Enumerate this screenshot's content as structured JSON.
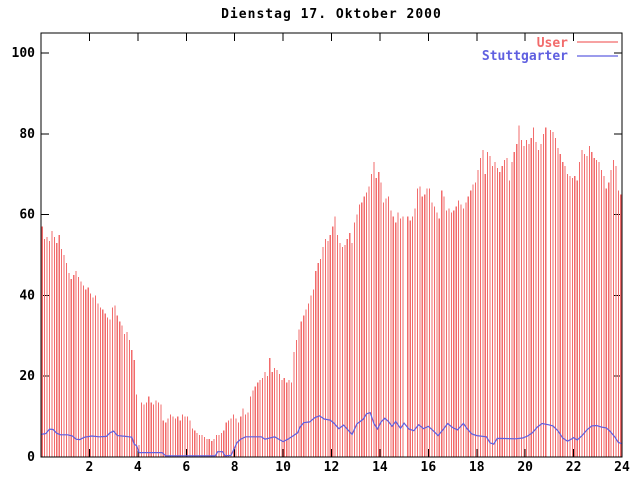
{
  "title": "Dienstag 17. Oktober 2000",
  "legend": {
    "position": "top-right-inside",
    "items": [
      {
        "label": "User",
        "color": "#f26b6b",
        "sample": "line"
      },
      {
        "label": "Stuttgarter",
        "color": "#5f5fe0",
        "sample": "line"
      }
    ]
  },
  "axes": {
    "x": {
      "min": 0,
      "max": 24,
      "ticks": [
        2,
        4,
        6,
        8,
        10,
        12,
        14,
        16,
        18,
        20,
        22,
        24
      ],
      "tick_labels": [
        "2",
        "4",
        "6",
        "8",
        "10",
        "12",
        "14",
        "16",
        "18",
        "20",
        "22",
        "24"
      ],
      "mirrored_top": true
    },
    "y": {
      "min": 0,
      "max": 100,
      "ticks": [
        0,
        20,
        40,
        60,
        80,
        100
      ],
      "tick_labels": [
        "0",
        "20",
        "40",
        "60",
        "80",
        "100"
      ],
      "mirrored_right": true
    }
  },
  "colors": {
    "background": "#ffffff",
    "border": "#000000",
    "text": "#000000",
    "user_bars": "#f26b6b",
    "stuttgarter_line": "#5f5fe0"
  },
  "chart_data": {
    "type": "bar",
    "title": "Dienstag 17. Oktober 2000",
    "xlabel": "",
    "ylabel": "",
    "xlim": [
      0,
      24
    ],
    "ylim": [
      0,
      100
    ],
    "grid": false,
    "note_gaps_hours": [
      15.05,
      20.95
    ],
    "series": [
      {
        "name": "User",
        "type": "impulses",
        "color": "#f26b6b",
        "x_start": 0.05,
        "x_step": 0.1,
        "values": [
          57,
          54,
          54.5,
          53.5,
          56,
          54.5,
          53,
          55,
          51.5,
          50,
          48,
          45.5,
          44,
          45,
          46,
          44.5,
          43.5,
          42.5,
          41.5,
          42,
          40.5,
          39.5,
          40,
          38,
          37,
          36.5,
          35.5,
          34.5,
          34,
          37,
          37.5,
          35,
          33.5,
          32.5,
          30.5,
          31,
          29,
          26.5,
          24,
          15.5,
          3,
          13.5,
          13,
          13.5,
          15,
          13.5,
          13,
          14,
          13.5,
          13,
          9,
          8.5,
          9.5,
          10.5,
          10,
          9.5,
          10,
          9,
          10.5,
          10,
          10,
          9,
          7,
          6.5,
          6,
          5.5,
          5.5,
          5,
          4.5,
          4.5,
          4,
          4.5,
          5.5,
          5.5,
          6,
          6.5,
          8.5,
          9,
          9.5,
          10.5,
          9.5,
          8.5,
          10,
          12,
          10.5,
          11,
          15,
          16.5,
          17.5,
          18.5,
          19,
          19.5,
          21,
          20,
          24.5,
          21,
          22,
          21.5,
          20.5,
          19,
          19.5,
          18.5,
          19,
          18.5,
          26,
          29,
          31.5,
          33.5,
          35,
          36.5,
          38,
          40,
          41.5,
          46,
          48,
          49,
          52,
          54,
          53.5,
          55,
          57,
          59.5,
          55,
          53,
          52,
          52.5,
          54,
          55.5,
          53,
          58,
          60,
          62.5,
          63,
          64.5,
          65.5,
          67,
          70,
          73,
          69,
          70.5,
          68,
          63,
          64,
          64.5,
          61,
          59.5,
          58,
          60.5,
          59,
          59.5,
          null,
          59.5,
          58.5,
          59.5,
          61.5,
          66.5,
          67,
          64.5,
          65,
          66.5,
          66.5,
          63,
          62,
          60.5,
          59,
          66,
          64.5,
          61,
          61.5,
          60.5,
          61,
          62,
          63.5,
          62.5,
          61.5,
          63,
          64.5,
          66,
          67.5,
          68,
          71,
          74,
          76,
          70,
          75.5,
          74.5,
          72,
          73,
          71.5,
          70.5,
          72,
          73.5,
          74,
          68.5,
          73,
          75.5,
          77.5,
          82,
          78.5,
          77,
          78.5,
          77.5,
          79,
          81.5,
          78,
          76,
          77.5,
          80,
          81.5,
          null,
          81,
          80.5,
          79,
          76.5,
          75,
          73,
          72,
          70,
          69.5,
          69,
          69.5,
          68.5,
          73,
          76,
          75,
          74.5,
          77,
          75.5,
          74,
          73.5,
          73,
          71,
          69.5,
          66.5,
          68,
          71,
          73.5,
          72,
          66,
          65
        ]
      },
      {
        "name": "Stuttgarter",
        "type": "line",
        "color": "#5f5fe0",
        "points": [
          [
            0,
            5.6
          ],
          [
            0.2,
            5.8
          ],
          [
            0.35,
            6.9
          ],
          [
            0.5,
            6.8
          ],
          [
            0.65,
            5.9
          ],
          [
            0.8,
            5.5
          ],
          [
            1.1,
            5.5
          ],
          [
            1.3,
            5.2
          ],
          [
            1.45,
            4.4
          ],
          [
            1.6,
            4.3
          ],
          [
            1.8,
            4.9
          ],
          [
            2.1,
            5.2
          ],
          [
            2.4,
            5
          ],
          [
            2.7,
            5.1
          ],
          [
            2.85,
            6
          ],
          [
            3,
            6.4
          ],
          [
            3.15,
            5.3
          ],
          [
            3.5,
            5.1
          ],
          [
            3.75,
            4.9
          ],
          [
            3.85,
            3.2
          ],
          [
            3.95,
            2.8
          ],
          [
            4.05,
            1.1
          ],
          [
            5,
            1.1
          ],
          [
            5.15,
            0.3
          ],
          [
            7.2,
            0.3
          ],
          [
            7.3,
            1.3
          ],
          [
            7.5,
            1.3
          ],
          [
            7.6,
            0.3
          ],
          [
            7.85,
            0.4
          ],
          [
            7.95,
            1.7
          ],
          [
            8.1,
            3.6
          ],
          [
            8.25,
            4.4
          ],
          [
            8.45,
            5
          ],
          [
            9.1,
            5
          ],
          [
            9.25,
            4.4
          ],
          [
            9.45,
            4.7
          ],
          [
            9.65,
            5
          ],
          [
            9.85,
            4.3
          ],
          [
            10,
            3.8
          ],
          [
            10.2,
            4.4
          ],
          [
            10.45,
            5.4
          ],
          [
            10.6,
            6
          ],
          [
            10.7,
            7.4
          ],
          [
            10.85,
            8.5
          ],
          [
            11.1,
            8.7
          ],
          [
            11.3,
            9.7
          ],
          [
            11.5,
            10.2
          ],
          [
            11.7,
            9.4
          ],
          [
            11.95,
            9.1
          ],
          [
            12.1,
            8.4
          ],
          [
            12.3,
            7
          ],
          [
            12.5,
            7.9
          ],
          [
            12.65,
            6.9
          ],
          [
            12.85,
            5.6
          ],
          [
            13.05,
            8.2
          ],
          [
            13.3,
            9.3
          ],
          [
            13.45,
            10.7
          ],
          [
            13.6,
            11
          ],
          [
            13.75,
            8.3
          ],
          [
            13.9,
            6.9
          ],
          [
            14.05,
            8.7
          ],
          [
            14.2,
            9.6
          ],
          [
            14.35,
            8.8
          ],
          [
            14.5,
            7.6
          ],
          [
            14.65,
            8.8
          ],
          [
            14.85,
            7.1
          ],
          [
            15,
            8.4
          ],
          [
            15.2,
            6.9
          ],
          [
            15.4,
            6.5
          ],
          [
            15.6,
            8
          ],
          [
            15.8,
            7
          ],
          [
            16,
            7.6
          ],
          [
            16.2,
            6.5
          ],
          [
            16.4,
            5.3
          ],
          [
            16.6,
            6.7
          ],
          [
            16.8,
            8.3
          ],
          [
            17,
            7.3
          ],
          [
            17.2,
            6.7
          ],
          [
            17.45,
            8.3
          ],
          [
            17.6,
            7
          ],
          [
            17.8,
            5.7
          ],
          [
            18,
            5.3
          ],
          [
            18.4,
            5
          ],
          [
            18.55,
            3.5
          ],
          [
            18.7,
            3.2
          ],
          [
            18.85,
            4.6
          ],
          [
            19.6,
            4.5
          ],
          [
            19.9,
            4.7
          ],
          [
            20.1,
            5.2
          ],
          [
            20.3,
            6
          ],
          [
            20.5,
            7.4
          ],
          [
            20.7,
            8.3
          ],
          [
            20.95,
            8
          ],
          [
            21.15,
            7.7
          ],
          [
            21.35,
            6.5
          ],
          [
            21.55,
            4.7
          ],
          [
            21.75,
            3.9
          ],
          [
            21.9,
            4.4
          ],
          [
            22,
            4.8
          ],
          [
            22.15,
            4.2
          ],
          [
            22.35,
            5.3
          ],
          [
            22.55,
            6.7
          ],
          [
            22.75,
            7.7
          ],
          [
            22.95,
            7.8
          ],
          [
            23.15,
            7.4
          ],
          [
            23.35,
            7.2
          ],
          [
            23.5,
            6.4
          ],
          [
            23.7,
            5
          ],
          [
            23.85,
            3.6
          ],
          [
            24,
            3.3
          ]
        ]
      }
    ]
  }
}
